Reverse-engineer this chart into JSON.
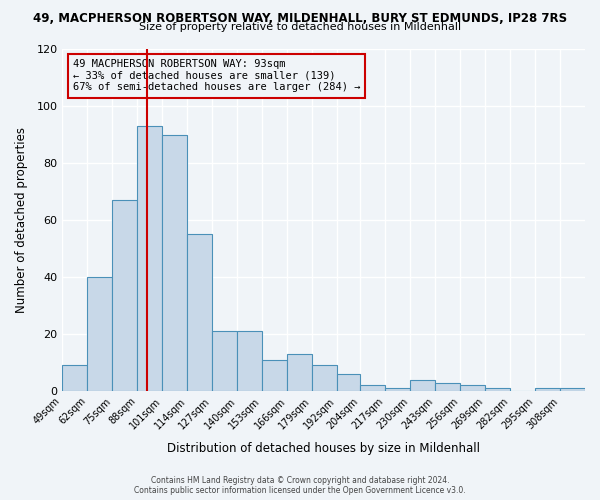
{
  "title_line1": "49, MACPHERSON ROBERTSON WAY, MILDENHALL, BURY ST EDMUNDS, IP28 7RS",
  "title_line2": "Size of property relative to detached houses in Mildenhall",
  "xlabel": "Distribution of detached houses by size in Mildenhall",
  "ylabel": "Number of detached properties",
  "bin_labels": [
    "49sqm",
    "62sqm",
    "75sqm",
    "88sqm",
    "101sqm",
    "114sqm",
    "127sqm",
    "140sqm",
    "153sqm",
    "166sqm",
    "179sqm",
    "192sqm",
    "204sqm",
    "217sqm",
    "230sqm",
    "243sqm",
    "256sqm",
    "269sqm",
    "282sqm",
    "295sqm",
    "308sqm"
  ],
  "bar_values": [
    9,
    40,
    67,
    93,
    90,
    55,
    21,
    21,
    11,
    13,
    9,
    6,
    2,
    1,
    4,
    3,
    2,
    1,
    0,
    1,
    1
  ],
  "bin_edges": [
    49,
    62,
    75,
    88,
    101,
    114,
    127,
    140,
    153,
    166,
    179,
    192,
    204,
    217,
    230,
    243,
    256,
    269,
    282,
    295,
    308,
    321
  ],
  "bar_color": "#c8d8e8",
  "bar_edgecolor": "#4a90b8",
  "vline_x": 93,
  "vline_color": "#cc0000",
  "ylim": [
    0,
    120
  ],
  "yticks": [
    0,
    20,
    40,
    60,
    80,
    100,
    120
  ],
  "annotation_line1": "49 MACPHERSON ROBERTSON WAY: 93sqm",
  "annotation_line2": "← 33% of detached houses are smaller (139)",
  "annotation_line3": "67% of semi-detached houses are larger (284) →",
  "annotation_box_edgecolor": "#cc0000",
  "footer_line1": "Contains HM Land Registry data © Crown copyright and database right 2024.",
  "footer_line2": "Contains public sector information licensed under the Open Government Licence v3.0.",
  "background_color": "#f0f4f8",
  "grid_color": "#ffffff"
}
